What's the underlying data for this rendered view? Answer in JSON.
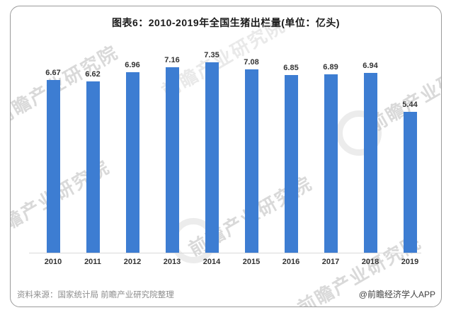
{
  "card": {
    "title": "图表6：2010-2019年全国生猪出栏量(单位：亿头)",
    "footer": {
      "source": "资料来源：国家统计局 前瞻产业研究院整理",
      "credit": "@前瞻经济学人APP"
    },
    "watermark": {
      "text": "前瞻产业研究院"
    }
  },
  "colors": {
    "bar": "#3d7dd2",
    "axis_line": "#d9d9d9",
    "value_label": "#333333",
    "tick_label": "#333333",
    "title_text": "#1a1a1a",
    "source_text": "#8c8c8c",
    "credit_text": "#414141",
    "watermark": "#bababa",
    "card_border": "#9b9b9b"
  },
  "chart_data": {
    "type": "bar",
    "title": "图表6：2010-2019年全国生猪出栏量(单位：亿头)",
    "unit": "亿头",
    "categories": [
      "2010",
      "2011",
      "2012",
      "2013",
      "2014",
      "2015",
      "2016",
      "2017",
      "2018",
      "2019"
    ],
    "values": [
      6.67,
      6.62,
      6.96,
      7.16,
      7.35,
      7.08,
      6.85,
      6.89,
      6.94,
      5.44
    ],
    "xlabel": "",
    "ylabel": "",
    "ylim": [
      0,
      8
    ],
    "grid": false,
    "legend": false,
    "value_labels": true,
    "bar_color": "#3d7dd2"
  }
}
